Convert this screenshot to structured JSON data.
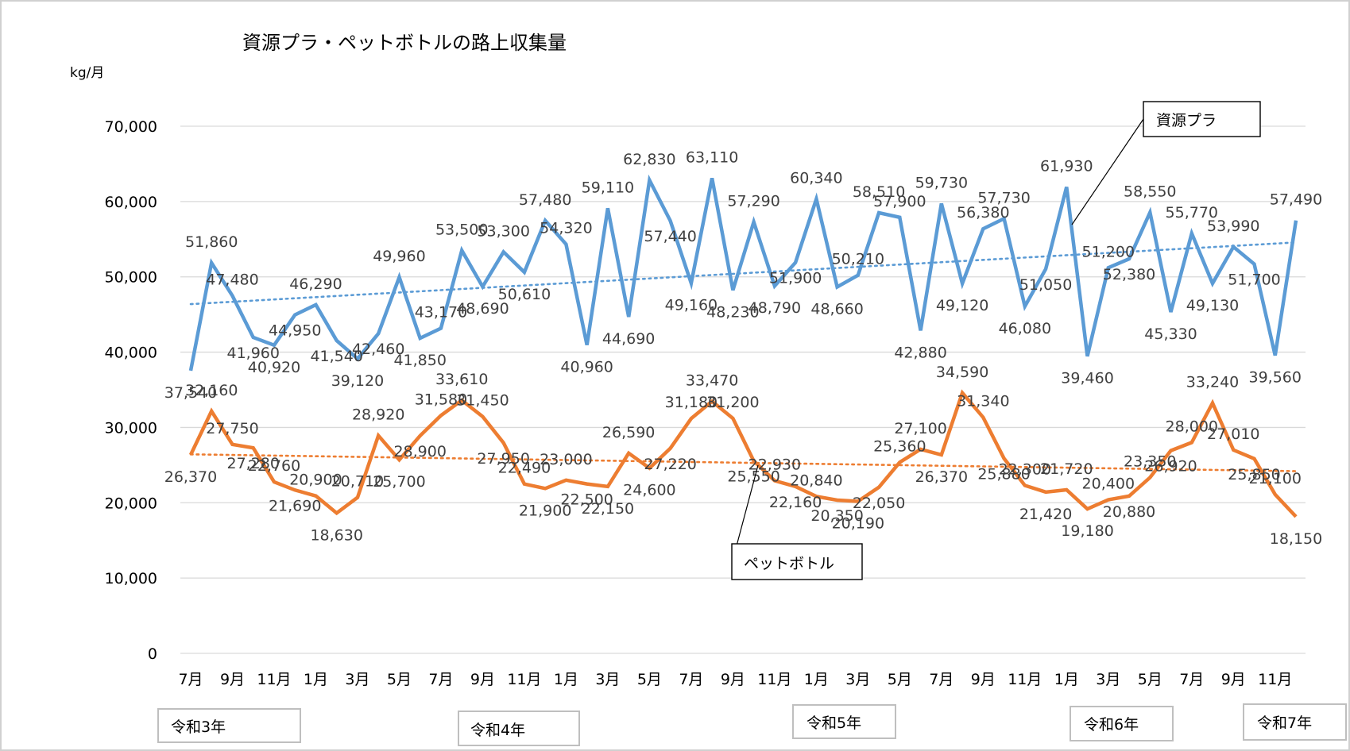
{
  "chart_data": {
    "type": "line",
    "title": "資源プラ・ペットボトルの路上収集量",
    "ylabel": "kg/月",
    "xlabel": "",
    "ylim": [
      0,
      70000
    ],
    "yticks": [
      0,
      10000,
      20000,
      30000,
      40000,
      50000,
      60000,
      70000
    ],
    "ytick_labels": [
      "0",
      "10,000",
      "20,000",
      "30,000",
      "40,000",
      "50,000",
      "60,000",
      "70,000"
    ],
    "grid": true,
    "x_months": [
      7,
      8,
      9,
      10,
      11,
      12,
      1,
      2,
      3,
      4,
      5,
      6,
      7,
      8,
      9,
      10,
      11,
      12,
      1,
      2,
      3,
      4,
      5,
      6,
      7,
      8,
      9,
      10,
      11,
      12,
      1,
      2,
      3,
      4,
      5,
      6,
      7,
      8,
      9,
      10,
      11,
      12,
      1,
      2,
      3,
      4,
      5,
      6,
      7,
      8,
      9,
      10,
      11,
      12
    ],
    "xtick_labels": [
      "7月",
      "9月",
      "11月",
      "1月",
      "3月",
      "5月",
      "7月",
      "9月",
      "11月",
      "1月",
      "3月",
      "5月",
      "7月",
      "9月",
      "11月",
      "1月",
      "3月",
      "5月",
      "7月",
      "9月",
      "11月",
      "1月",
      "3月",
      "5月",
      "7月",
      "9月",
      "11月"
    ],
    "year_labels": [
      "令和3年",
      "令和4年",
      "令和5年",
      "令和6年",
      "令和7年"
    ],
    "series": [
      {
        "name": "資源プラ",
        "color": "#5b9bd5",
        "trendline": "linear",
        "values": [
          37540,
          51860,
          47480,
          41960,
          40920,
          44950,
          46290,
          41540,
          39120,
          42460,
          49960,
          41850,
          43170,
          53500,
          48690,
          53300,
          50610,
          57480,
          54320,
          40960,
          59110,
          44690,
          62830,
          57440,
          49160,
          63110,
          48230,
          57290,
          48790,
          51900,
          60340,
          48660,
          50210,
          58510,
          57900,
          42880,
          59730,
          49120,
          56380,
          57730,
          46080,
          51050,
          61930,
          39460,
          51200,
          52380,
          58550,
          45330,
          55770,
          49130,
          53990,
          51700,
          39560,
          57490
        ]
      },
      {
        "name": "ペットボトル",
        "color": "#ed7d31",
        "trendline": "linear",
        "values": [
          26370,
          32160,
          27750,
          27280,
          22760,
          21690,
          20900,
          18630,
          20710,
          28920,
          25700,
          28900,
          31580,
          33610,
          31450,
          27950,
          22490,
          21900,
          23000,
          22500,
          22150,
          26590,
          24600,
          27220,
          31180,
          33470,
          31200,
          25550,
          22930,
          22160,
          20840,
          20350,
          20190,
          22050,
          25360,
          27100,
          26370,
          34590,
          31340,
          25880,
          22300,
          21420,
          21720,
          19180,
          20400,
          20880,
          23350,
          26920,
          28000,
          33240,
          27010,
          25850,
          21100,
          18150
        ]
      }
    ],
    "callouts": [
      "資源プラ",
      "ペットボトル"
    ]
  }
}
